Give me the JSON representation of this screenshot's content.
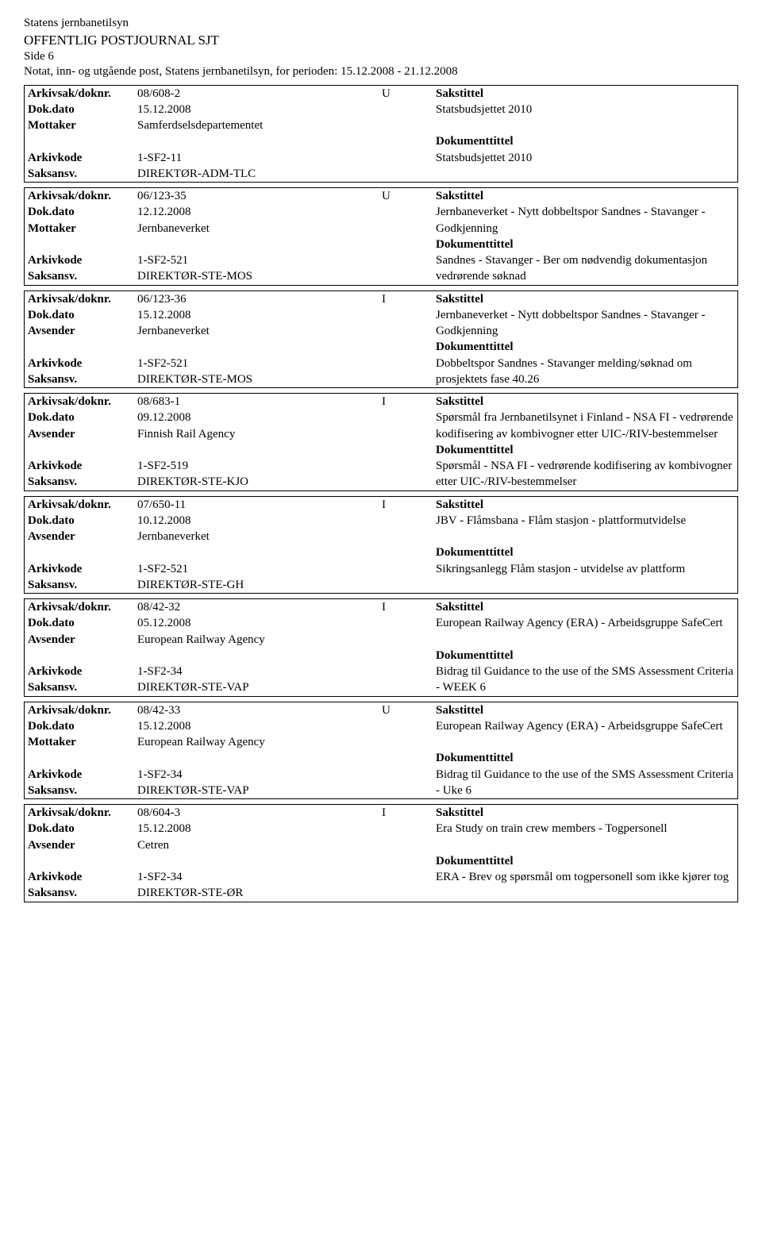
{
  "header": {
    "agency": "Statens jernbanetilsyn",
    "title": "OFFENTLIG POSTJOURNAL SJT",
    "page": "Side 6",
    "period": "Notat, inn- og utgående post, Statens jernbanetilsyn, for perioden: 15.12.2008 - 21.12.2008"
  },
  "labels": {
    "arkivsak": "Arkivsak/doknr.",
    "dokdato": "Dok.dato",
    "mottaker": "Mottaker",
    "avsender": "Avsender",
    "arkivkode": "Arkivkode",
    "saksansv": "Saksansv.",
    "sakstittel": "Sakstittel",
    "dokumenttittel": "Dokumenttittel"
  },
  "entries": [
    {
      "arkivsak": "08/608-2",
      "io": "U",
      "dokdato": "15.12.2008",
      "party_label": "Mottaker",
      "party": "Samferdselsdepartementet",
      "arkivkode": "1-SF2-11",
      "saksansv": "DIREKTØR-ADM-TLC",
      "sakstittel": "Statsbudsjettet 2010",
      "dokumenttittel": "Statsbudsjettet 2010"
    },
    {
      "arkivsak": "06/123-35",
      "io": "U",
      "dokdato": "12.12.2008",
      "party_label": "Mottaker",
      "party": "Jernbaneverket",
      "arkivkode": "1-SF2-521",
      "saksansv": "DIREKTØR-STE-MOS",
      "sakstittel": "Jernbaneverket - Nytt dobbeltspor Sandnes - Stavanger - Godkjenning",
      "dokumenttittel": "Sandnes - Stavanger - Ber om nødvendig dokumentasjon vedrørende søknad"
    },
    {
      "arkivsak": "06/123-36",
      "io": "I",
      "dokdato": "15.12.2008",
      "party_label": "Avsender",
      "party": "Jernbaneverket",
      "arkivkode": "1-SF2-521",
      "saksansv": "DIREKTØR-STE-MOS",
      "sakstittel": "Jernbaneverket - Nytt dobbeltspor Sandnes - Stavanger - Godkjenning",
      "dokumenttittel": "Dobbeltspor Sandnes - Stavanger melding/søknad om prosjektets fase 40.26"
    },
    {
      "arkivsak": "08/683-1",
      "io": "I",
      "dokdato": "09.12.2008",
      "party_label": "Avsender",
      "party": "Finnish Rail Agency",
      "arkivkode": "1-SF2-519",
      "saksansv": "DIREKTØR-STE-KJO",
      "sakstittel": "Spørsmål fra Jernbanetilsynet i Finland - NSA FI - vedrørende kodifisering av kombivogner etter UIC-/RIV-bestemmelser",
      "dokumenttittel": "Spørsmål - NSA FI - vedrørende kodifisering av kombivogner etter UIC-/RIV-bestemmelser"
    },
    {
      "arkivsak": "07/650-11",
      "io": "I",
      "dokdato": "10.12.2008",
      "party_label": "Avsender",
      "party": "Jernbaneverket",
      "arkivkode": "1-SF2-521",
      "saksansv": "DIREKTØR-STE-GH",
      "sakstittel": "JBV - Flåmsbana - Flåm stasjon - plattformutvidelse",
      "dokumenttittel": "Sikringsanlegg Flåm stasjon - utvidelse av plattform"
    },
    {
      "arkivsak": "08/42-32",
      "io": "I",
      "dokdato": "05.12.2008",
      "party_label": "Avsender",
      "party": "European Railway Agency",
      "arkivkode": "1-SF2-34",
      "saksansv": "DIREKTØR-STE-VAP",
      "sakstittel": "European Railway Agency (ERA) - Arbeidsgruppe SafeCert",
      "dokumenttittel": "Bidrag til Guidance to the use of the SMS Assessment Criteria - WEEK 6"
    },
    {
      "arkivsak": "08/42-33",
      "io": "U",
      "dokdato": "15.12.2008",
      "party_label": "Mottaker",
      "party": "European Railway Agency",
      "arkivkode": "1-SF2-34",
      "saksansv": "DIREKTØR-STE-VAP",
      "sakstittel": "European Railway Agency (ERA) - Arbeidsgruppe SafeCert",
      "dokumenttittel": "Bidrag til Guidance to the use of the SMS Assessment Criteria - Uke 6"
    },
    {
      "arkivsak": "08/604-3",
      "io": "I",
      "dokdato": "15.12.2008",
      "party_label": "Avsender",
      "party": "Cetren",
      "arkivkode": "1-SF2-34",
      "saksansv": "DIREKTØR-STE-ØR",
      "sakstittel": "Era Study on train crew members - Togpersonell",
      "dokumenttittel": "ERA - Brev og spørsmål om togpersonell som ikke kjører tog"
    }
  ]
}
